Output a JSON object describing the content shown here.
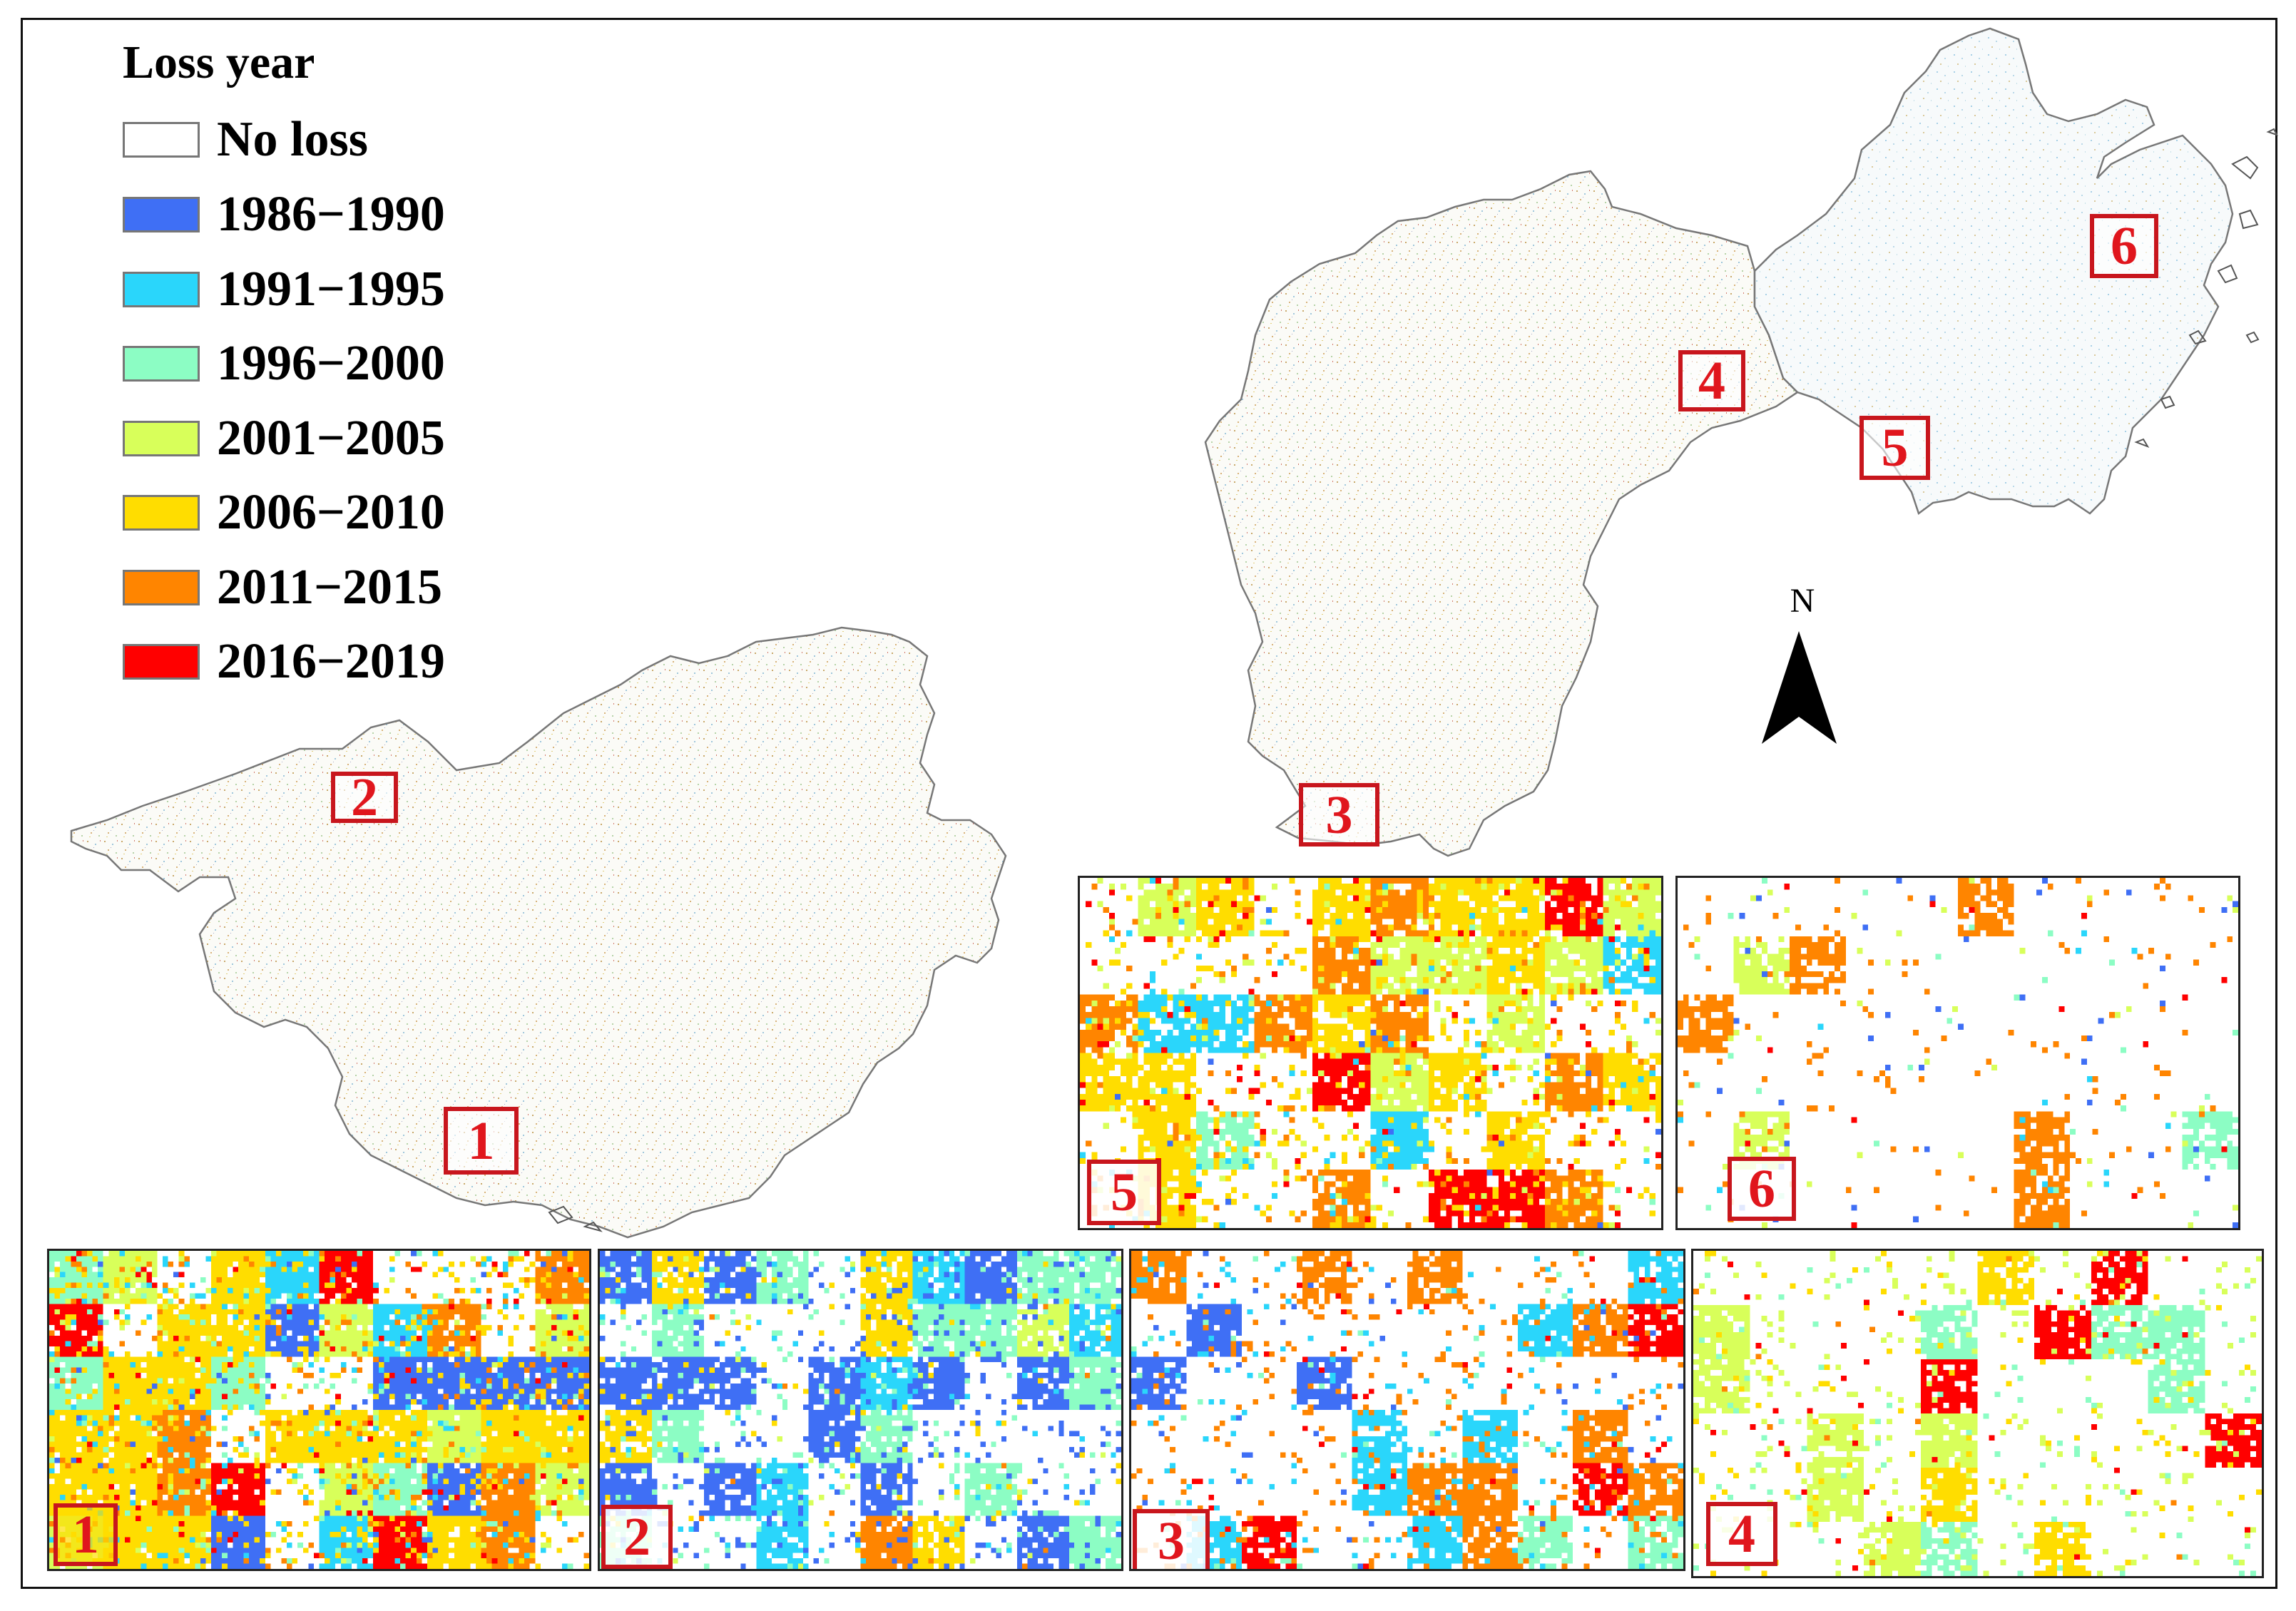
{
  "legend": {
    "title": "Loss year",
    "items": [
      {
        "label": "No loss",
        "color": "#ffffff"
      },
      {
        "label": "1986−1990",
        "color": "#3f6ff5"
      },
      {
        "label": "1991−1995",
        "color": "#2ad6fb"
      },
      {
        "label": "1996−2000",
        "color": "#8cfdc4"
      },
      {
        "label": "2001−2005",
        "color": "#d8ff5a"
      },
      {
        "label": "2006−2010",
        "color": "#ffdd00"
      },
      {
        "label": "2011−2015",
        "color": "#ff8500"
      },
      {
        "label": "2016−2019",
        "color": "#ff0000"
      }
    ]
  },
  "north_arrow": {
    "label": "N"
  },
  "map_labels": [
    "1",
    "2",
    "3",
    "4",
    "5",
    "6"
  ],
  "inset_panels": [
    {
      "id": "5",
      "label": "5"
    },
    {
      "id": "6",
      "label": "6"
    },
    {
      "id": "1",
      "label": "1"
    },
    {
      "id": "2",
      "label": "2"
    },
    {
      "id": "3",
      "label": "3"
    },
    {
      "id": "4",
      "label": "4"
    }
  ],
  "colors": {
    "label_red": "#e0161d",
    "frame": "#111111"
  }
}
